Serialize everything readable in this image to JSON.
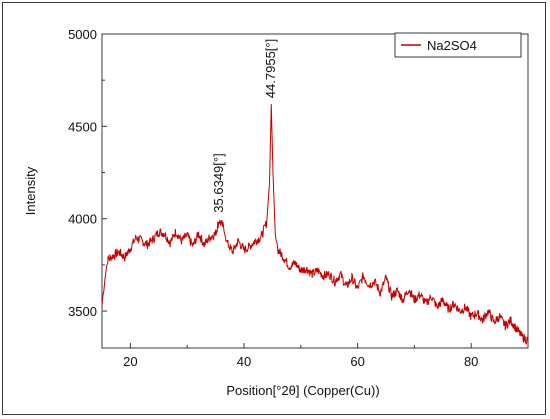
{
  "chart_data": {
    "type": "line",
    "title": "",
    "xlabel": "Position[°2θ] (Copper(Cu))",
    "ylabel": "Intensity",
    "xlim": [
      15,
      90
    ],
    "ylim": [
      3300,
      5000
    ],
    "xticks": [
      20,
      40,
      60,
      80
    ],
    "yticks": [
      3500,
      4000,
      4500,
      5000
    ],
    "grid": false,
    "legend_position": "top-right",
    "series": [
      {
        "name": "Na2SO4",
        "color": "#c00000",
        "x": [
          15,
          15.5,
          16,
          17,
          18,
          19,
          20,
          21,
          22,
          23,
          24,
          25,
          26,
          27,
          28,
          29,
          30,
          31,
          32,
          33,
          34,
          35,
          35.6,
          36.5,
          37,
          38,
          39,
          40,
          41,
          42,
          43,
          44,
          44.5,
          44.8,
          45.1,
          45.5,
          46,
          47,
          48,
          49,
          50,
          51,
          52,
          53,
          54,
          55,
          56,
          57,
          58,
          59,
          60,
          61,
          62,
          63,
          64,
          65,
          66,
          67,
          68,
          69,
          70,
          71,
          72,
          73,
          74,
          75,
          76,
          77,
          78,
          79,
          80,
          81,
          82,
          83,
          84,
          85,
          86,
          87,
          88,
          89,
          90
        ],
        "y": [
          3530,
          3680,
          3780,
          3800,
          3820,
          3790,
          3840,
          3900,
          3880,
          3860,
          3890,
          3930,
          3920,
          3870,
          3930,
          3880,
          3910,
          3850,
          3920,
          3860,
          3900,
          3920,
          3990,
          3950,
          3870,
          3820,
          3880,
          3830,
          3850,
          3880,
          3900,
          3980,
          4200,
          4620,
          4250,
          3920,
          3830,
          3790,
          3740,
          3760,
          3720,
          3730,
          3700,
          3720,
          3690,
          3700,
          3660,
          3700,
          3630,
          3680,
          3620,
          3690,
          3640,
          3660,
          3600,
          3680,
          3580,
          3610,
          3560,
          3620,
          3560,
          3590,
          3540,
          3580,
          3520,
          3560,
          3510,
          3540,
          3500,
          3520,
          3470,
          3490,
          3450,
          3500,
          3440,
          3470,
          3420,
          3450,
          3400,
          3360,
          3340
        ]
      }
    ],
    "annotations": [
      {
        "text": "35.6349[°]",
        "x": 35.6349,
        "y": 4000
      },
      {
        "text": "44.7955[°]",
        "x": 44.7955,
        "y": 4620
      }
    ]
  }
}
